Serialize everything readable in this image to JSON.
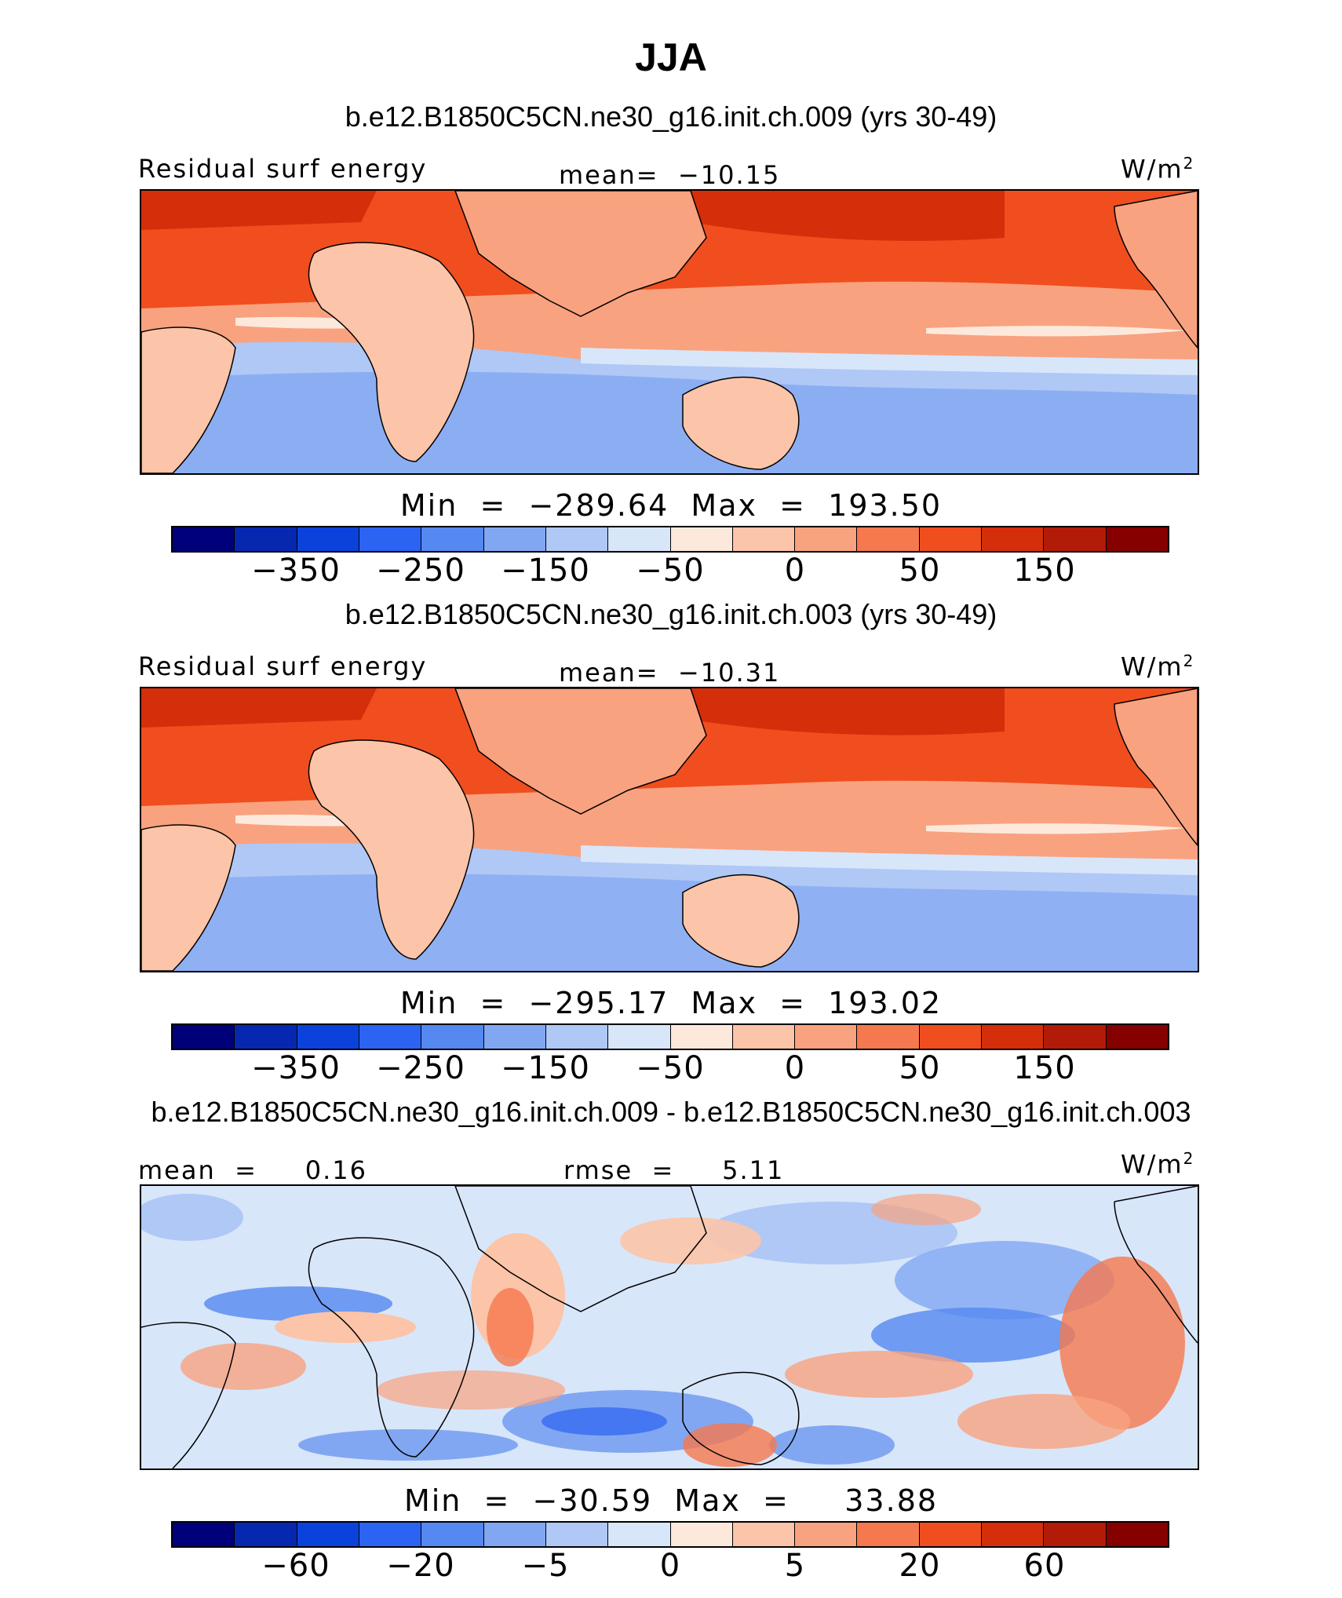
{
  "season_title": "JJA",
  "colors": [
    "#00007a",
    "#0628b0",
    "#0a42db",
    "#2b63f2",
    "#5588f0",
    "#82a7f2",
    "#afc8f6",
    "#d8e6fa",
    "#fde9dc",
    "#fcc4a8",
    "#f9a27f",
    "#f6784e",
    "#f04e1e",
    "#d42e0a",
    "#b11b08",
    "#870000"
  ],
  "panels": [
    {
      "case_title": "b.e12.B1850C5CN.ne30_g16.init.ch.009 (yrs 30-49)",
      "left_label": "Residual surf energy",
      "center_label": "mean=  −10.15",
      "units": "W/m",
      "units_sup": "2",
      "minmax": "Min  =  −289.64  Max  =  193.50",
      "ticks": [
        "−350",
        "−250",
        "−150",
        "−50",
        "0",
        "50",
        "150"
      ]
    },
    {
      "case_title": "b.e12.B1850C5CN.ne30_g16.init.ch.003 (yrs 30-49)",
      "left_label": "Residual surf energy",
      "center_label": "mean=  −10.31",
      "units": "W/m",
      "units_sup": "2",
      "minmax": "Min  =  −295.17  Max  =  193.02",
      "ticks": [
        "−350",
        "−250",
        "−150",
        "−50",
        "0",
        "50",
        "150"
      ]
    },
    {
      "case_title": "b.e12.B1850C5CN.ne30_g16.init.ch.009 - b.e12.B1850C5CN.ne30_g16.init.ch.003",
      "left_label": "mean  =     0.16",
      "center_label": "rmse  =     5.11",
      "units": "W/m",
      "units_sup": "2",
      "minmax": "Min  =  −30.59  Max  =     33.88",
      "ticks": [
        "−60",
        "−20",
        "−5",
        "0",
        "5",
        "20",
        "60"
      ]
    }
  ]
}
